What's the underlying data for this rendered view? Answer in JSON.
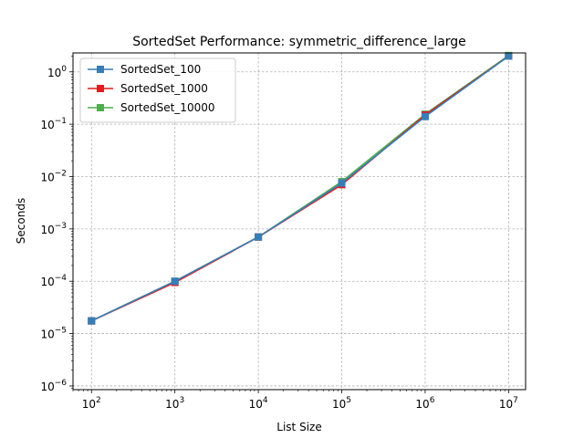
{
  "chart_data": {
    "type": "line",
    "title": "SortedSet Performance: symmetric_difference_large",
    "xlabel": "List Size",
    "ylabel": "Seconds",
    "xscale": "log",
    "yscale": "log",
    "xlim": [
      60,
      16000000
    ],
    "ylim": [
      8.5e-07,
      2.3
    ],
    "grid": true,
    "legend_position": "top-left",
    "x_ticks": [
      {
        "value": 100,
        "mant": "10",
        "exp": "2"
      },
      {
        "value": 1000,
        "mant": "10",
        "exp": "3"
      },
      {
        "value": 10000,
        "mant": "10",
        "exp": "4"
      },
      {
        "value": 100000,
        "mant": "10",
        "exp": "5"
      },
      {
        "value": 1000000,
        "mant": "10",
        "exp": "6"
      },
      {
        "value": 10000000,
        "mant": "10",
        "exp": "7"
      }
    ],
    "y_ticks": [
      {
        "value": 1e-06,
        "mant": "10",
        "exp": "−6"
      },
      {
        "value": 1e-05,
        "mant": "10",
        "exp": "−5"
      },
      {
        "value": 0.0001,
        "mant": "10",
        "exp": "−4"
      },
      {
        "value": 0.001,
        "mant": "10",
        "exp": "−3"
      },
      {
        "value": 0.01,
        "mant": "10",
        "exp": "−2"
      },
      {
        "value": 0.1,
        "mant": "10",
        "exp": "−1"
      },
      {
        "value": 1,
        "mant": "10",
        "exp": "0"
      }
    ],
    "x": [
      100,
      1000,
      10000,
      100000,
      1000000,
      10000000
    ],
    "series": [
      {
        "name": "SortedSet_100",
        "color": "#377eb8",
        "values": [
          1.75e-05,
          0.0001,
          0.0007,
          0.0075,
          0.14,
          2.0
        ]
      },
      {
        "name": "SortedSet_1000",
        "color": "#e41a1c",
        "values": [
          1.75e-05,
          9.5e-05,
          0.0007,
          0.007,
          0.15,
          2.0
        ]
      },
      {
        "name": "SortedSet_10000",
        "color": "#4daf4a",
        "values": [
          1.75e-05,
          0.0001,
          0.0007,
          0.008,
          0.155,
          2.05
        ]
      }
    ]
  }
}
